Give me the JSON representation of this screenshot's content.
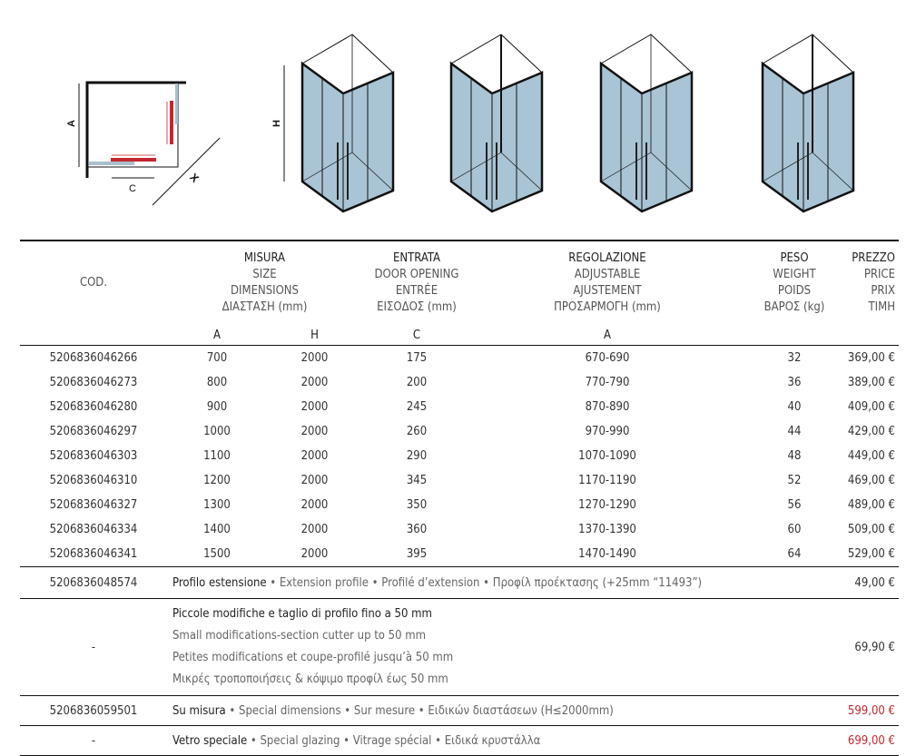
{
  "diagram_labels": {
    "a": "A",
    "c": "C",
    "x": "X",
    "h": "H"
  },
  "colors": {
    "glass": "#a9c4d4",
    "frame": "#111111",
    "accent_red": "#c3272f",
    "special_price": "#c3272f"
  },
  "header": {
    "cod": "COD.",
    "misura": [
      "MISURA",
      "SIZE",
      "DIMENSIONS",
      "ΔΙΑΣΤΑΣΗ (mm)"
    ],
    "entrata": [
      "ENTRATA",
      "DOOR OPENING",
      "ENTRÉE",
      "ΕΙΣΟΔΟΣ (mm)"
    ],
    "regolazione": [
      "REGOLAZIONE",
      "ADJUSTABLE",
      "AJUSTEMENT",
      "ΠΡΟΣΑΡΜΟΓΗ (mm)"
    ],
    "peso": [
      "PESO",
      "WEIGHT",
      "POIDS",
      "ΒΑΡΟΣ (kg)"
    ],
    "prezzo": [
      "PREZZO",
      "PRICE",
      "PRIX",
      "ΤΙΜΗ"
    ],
    "sub": [
      "A",
      "H",
      "C",
      "A"
    ]
  },
  "rows": [
    [
      "5206836046266",
      "700",
      "2000",
      "175",
      "670-690",
      "32",
      "369,00 €"
    ],
    [
      "5206836046273",
      "800",
      "2000",
      "200",
      "770-790",
      "36",
      "389,00 €"
    ],
    [
      "5206836046280",
      "900",
      "2000",
      "245",
      "870-890",
      "40",
      "409,00 €"
    ],
    [
      "5206836046297",
      "1000",
      "2000",
      "260",
      "970-990",
      "44",
      "429,00 €"
    ],
    [
      "5206836046303",
      "1100",
      "2000",
      "290",
      "1070-1090",
      "48",
      "449,00 €"
    ],
    [
      "5206836046310",
      "1200",
      "2000",
      "345",
      "1170-1190",
      "52",
      "469,00 €"
    ],
    [
      "5206836046327",
      "1300",
      "2000",
      "350",
      "1270-1290",
      "56",
      "489,00 €"
    ],
    [
      "5206836046334",
      "1400",
      "2000",
      "360",
      "1370-1390",
      "60",
      "509,00 €"
    ],
    [
      "5206836046341",
      "1500",
      "2000",
      "395",
      "1470-1490",
      "64",
      "529,00 €"
    ]
  ],
  "extras": [
    {
      "cod": "5206836048574",
      "title": "Profilo estensione",
      "rest": " • Extension profile • Profilé d’extension • Προφίλ προέκτασης (+25mm “11493”)",
      "price": "49,00 €",
      "special": false
    },
    {
      "cod": "-",
      "lines": [
        "Piccole modifiche e taglio di profilo fino a 50 mm",
        "Small modifications-section cutter up to 50 mm",
        "Petites modifications et coupe-profilé jusqu’à 50 mm",
        "Μικρές τροποποιήσεις & κόψιμο προφίλ έως 50 mm"
      ],
      "price": "69,90 €",
      "special": false
    },
    {
      "cod": "5206836059501",
      "title": "Su misura",
      "rest": " • Special dimensions • Sur mesure • Ειδικών διαστάσεων (H≤2000mm)",
      "price": "599,00 €",
      "special": true
    },
    {
      "cod": "-",
      "title": "Vetro speciale",
      "rest": " • Special glazing • Vitrage spécial • Ειδικά κρυστάλλα",
      "price": "699,00 €",
      "special": true
    }
  ]
}
